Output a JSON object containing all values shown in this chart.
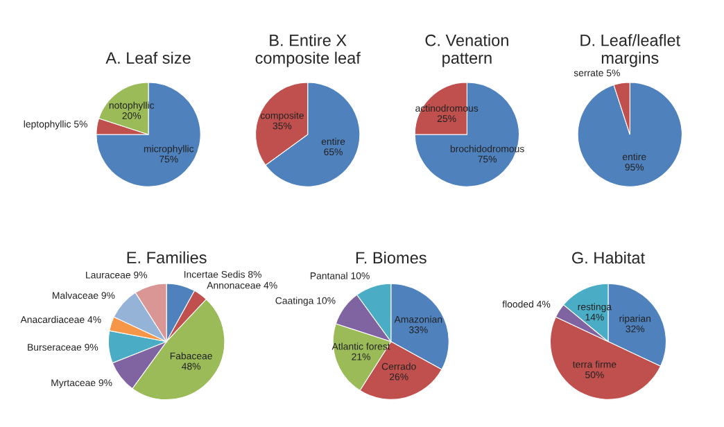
{
  "chart_data": [
    {
      "type": "pie",
      "title": "A. Leaf size",
      "categories": [
        "microphyllic",
        "leptophyllic",
        "notophyllic"
      ],
      "values": [
        75,
        5,
        20
      ],
      "value_labels": [
        "75%",
        "5%",
        "20%"
      ],
      "colors": [
        "#4f81bd",
        "#c0504d",
        "#9bbb59"
      ]
    },
    {
      "type": "pie",
      "title": "B. Entire X\ncomposite leaf",
      "categories": [
        "entire",
        "composite"
      ],
      "values": [
        65,
        35
      ],
      "value_labels": [
        "65%",
        "35%"
      ],
      "colors": [
        "#4f81bd",
        "#c0504d"
      ]
    },
    {
      "type": "pie",
      "title": "C. Venation\npattern",
      "categories": [
        "brochidodromous",
        "actinodromous"
      ],
      "values": [
        75,
        25
      ],
      "value_labels": [
        "75%",
        "25%"
      ],
      "colors": [
        "#4f81bd",
        "#c0504d"
      ]
    },
    {
      "type": "pie",
      "title": "D. Leaf/leaflet\nmargins",
      "categories": [
        "entire",
        "serrate"
      ],
      "values": [
        95,
        5
      ],
      "value_labels": [
        "95%",
        "5%"
      ],
      "colors": [
        "#4f81bd",
        "#c0504d"
      ]
    },
    {
      "type": "pie",
      "title": "E. Families",
      "categories": [
        "Incertae Sedis",
        "Annonaceae",
        "Fabaceae",
        "Myrtaceae",
        "Burseraceae",
        "Anacardiaceae",
        "Malvaceae",
        "Lauraceae"
      ],
      "values": [
        8,
        4,
        48,
        9,
        9,
        4,
        9,
        9
      ],
      "value_labels": [
        "8%",
        "4%",
        "48%",
        "9%",
        "9%",
        "4%",
        "9%",
        "9%"
      ],
      "colors": [
        "#4f81bd",
        "#c0504d",
        "#9bbb59",
        "#8064a2",
        "#4bacc6",
        "#f79646",
        "#95b3d7",
        "#d99694"
      ]
    },
    {
      "type": "pie",
      "title": "F. Biomes",
      "categories": [
        "Amazonian",
        "Cerrado",
        "Atlantic forest",
        "Caatinga",
        "Pantanal"
      ],
      "values": [
        33,
        26,
        21,
        10,
        10
      ],
      "value_labels": [
        "33%",
        "26%",
        "21%",
        "10%",
        "10%"
      ],
      "colors": [
        "#4f81bd",
        "#c0504d",
        "#9bbb59",
        "#8064a2",
        "#4bacc6"
      ]
    },
    {
      "type": "pie",
      "title": "G. Habitat",
      "categories": [
        "riparian",
        "terra firme",
        "flooded",
        "restinga"
      ],
      "values": [
        32,
        50,
        4,
        14
      ],
      "value_labels": [
        "32%",
        "50%",
        "4%",
        "14%"
      ],
      "colors": [
        "#4f81bd",
        "#c0504d",
        "#8064a2",
        "#4bacc6"
      ]
    }
  ]
}
